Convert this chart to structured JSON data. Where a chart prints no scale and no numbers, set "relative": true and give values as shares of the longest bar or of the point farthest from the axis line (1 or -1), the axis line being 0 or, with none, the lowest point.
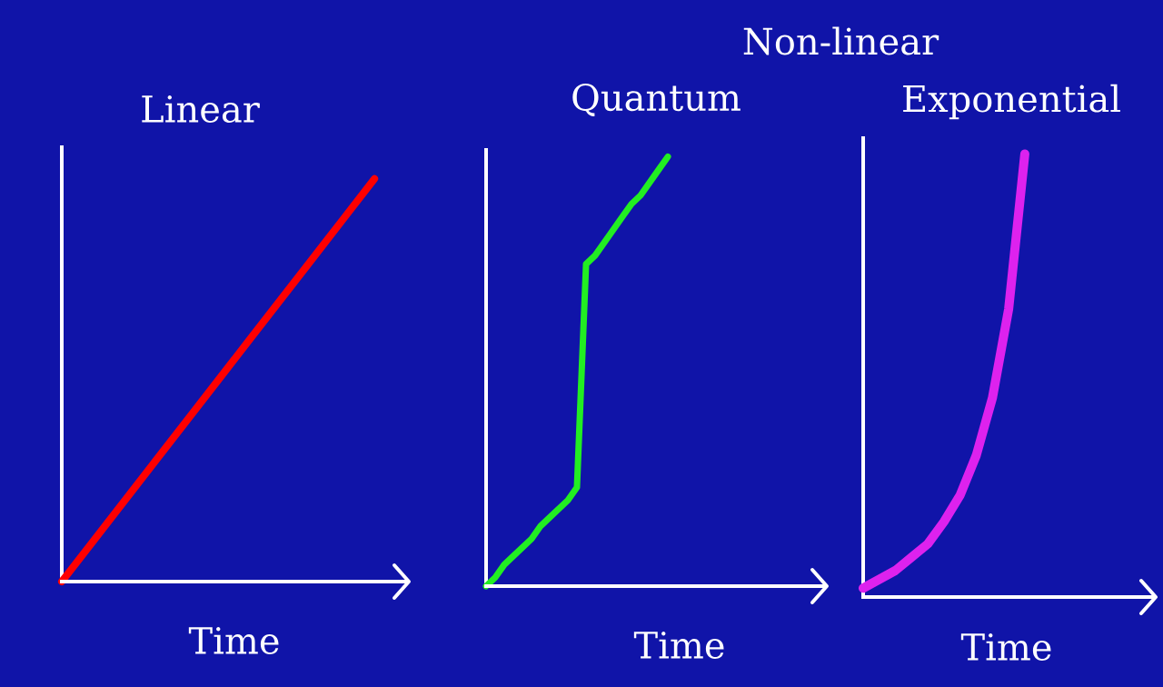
{
  "chart_data": [
    {
      "type": "line",
      "title": "Linear",
      "xlabel": "Time",
      "relative": true,
      "tick_labels": false,
      "categories": [
        null,
        null,
        null,
        null,
        null,
        null,
        null,
        null,
        null,
        null,
        null
      ],
      "values": [
        0,
        0.1,
        0.2,
        0.3,
        0.4,
        0.5,
        0.6,
        0.7,
        0.8,
        0.9,
        1
      ],
      "color": "#ff0000"
    },
    {
      "type": "line",
      "title": "Quantum",
      "xlabel": "Time",
      "relative": true,
      "tick_labels": false,
      "annotations": [
        "Non-linear"
      ],
      "categories": [
        null,
        null,
        null,
        null,
        null,
        null,
        null,
        null,
        null,
        null,
        null,
        null,
        null,
        null,
        null,
        null,
        null,
        null,
        null,
        null,
        null
      ],
      "values": [
        0,
        0.02,
        0.05,
        0.07,
        0.09,
        0.11,
        0.14,
        0.16,
        0.18,
        0.2,
        0.23,
        0.75,
        0.77,
        0.8,
        0.83,
        0.86,
        0.89,
        0.91,
        0.94,
        0.97,
        1
      ],
      "color": "#22ee22"
    },
    {
      "type": "line",
      "title": "Exponential",
      "xlabel": "Time",
      "relative": true,
      "tick_labels": false,
      "categories": [
        null,
        null,
        null,
        null,
        null,
        null,
        null,
        null,
        null,
        null,
        null
      ],
      "values": [
        0.02,
        0.04,
        0.06,
        0.09,
        0.12,
        0.17,
        0.23,
        0.32,
        0.45,
        0.65,
        1
      ],
      "color": "#dd22ee"
    }
  ]
}
